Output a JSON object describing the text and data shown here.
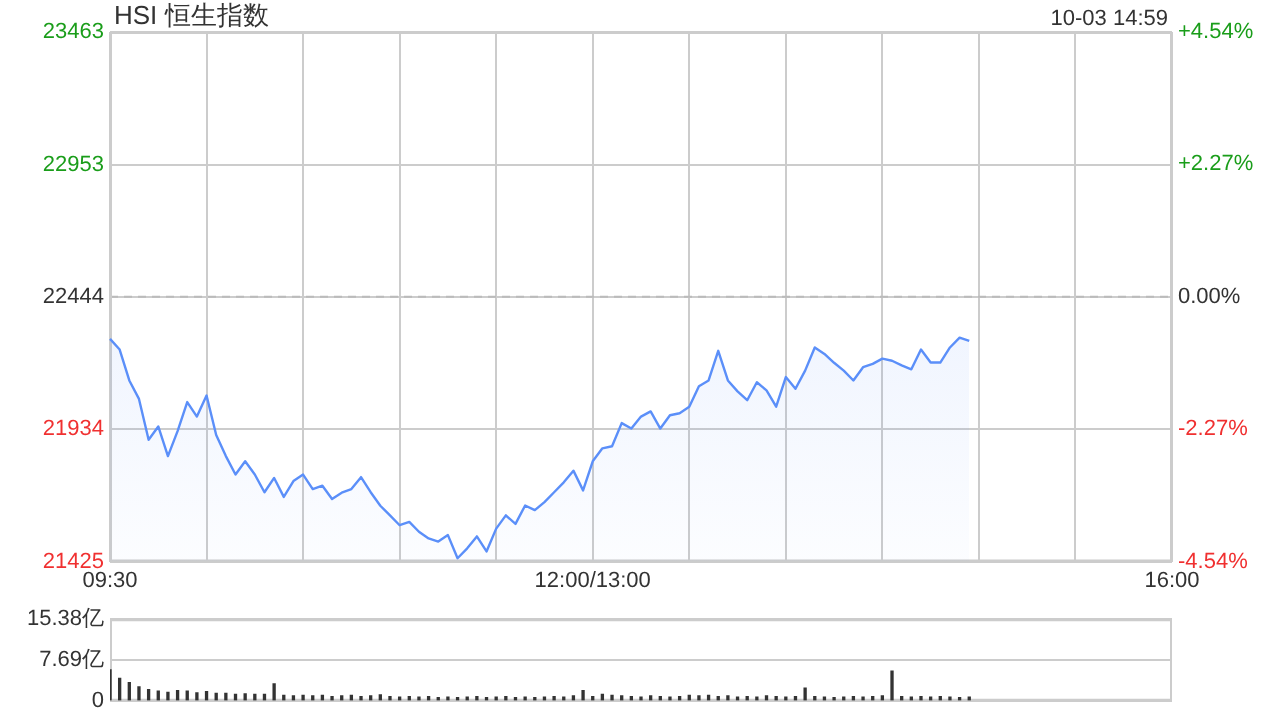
{
  "chart_data": [
    {
      "type": "area",
      "title": "HSI 恒生指数",
      "annotations": [
        "10-03 14:59"
      ],
      "categories": [
        "09:30",
        null,
        null,
        null,
        null,
        null,
        null,
        null,
        null,
        null,
        null,
        null,
        null,
        null,
        null,
        null,
        null,
        null,
        null,
        null,
        null,
        null,
        null,
        null,
        null,
        null,
        null,
        null,
        null,
        null,
        null,
        null,
        null,
        null,
        null,
        null,
        null,
        null,
        null,
        null,
        null,
        null,
        null,
        null,
        null,
        null,
        null,
        null,
        null,
        null,
        "12:00/13:00",
        null,
        null,
        null,
        null,
        null,
        null,
        null,
        null,
        null,
        null,
        null,
        null,
        null,
        null,
        null,
        null,
        null,
        null,
        null,
        null,
        null,
        null,
        null,
        null,
        null,
        null,
        null,
        null,
        null,
        null,
        null,
        null,
        null,
        null,
        null,
        null,
        null,
        null,
        null,
        null,
        null,
        null,
        null,
        null,
        null,
        null,
        null,
        null,
        null,
        null,
        null,
        null,
        null,
        null,
        null,
        null,
        null,
        null,
        null,
        "16:00"
      ],
      "series": [
        {
          "color": "#5b8ff9",
          "values": [
            22282,
            22241,
            22122,
            22051,
            21894,
            21945,
            21831,
            21927,
            22039,
            21983,
            22064,
            21912,
            21831,
            21760,
            21811,
            21760,
            21692,
            21747,
            21674,
            21735,
            21760,
            21704,
            21717,
            21666,
            21690,
            21704,
            21750,
            21692,
            21640,
            21603,
            21565,
            21578,
            21540,
            21514,
            21502,
            21527,
            21438,
            21476,
            21522,
            21464,
            21552,
            21603,
            21570,
            21641,
            21623,
            21654,
            21692,
            21730,
            21775,
            21699,
            21811,
            21861,
            21869,
            21958,
            21937,
            21983,
            22003,
            21937,
            21988,
            21996,
            22021,
            22100,
            22122,
            22236,
            22122,
            22080,
            22046,
            22115,
            22084,
            22021,
            22135,
            22090,
            22160,
            22249,
            22224,
            22190,
            22160,
            22122,
            22173,
            22186,
            22206,
            22198,
            22180,
            22165,
            22241,
            22191,
            22191,
            22249,
            22287,
            22274,
            null,
            null,
            null,
            null,
            null,
            null,
            null,
            null,
            null,
            null,
            null,
            null,
            null,
            null,
            null,
            null,
            null,
            null,
            null,
            null,
            null
          ]
        }
      ],
      "ylim": [
        21425,
        23463
      ],
      "yticks": [
        21425,
        21934,
        22444,
        22953,
        23463
      ],
      "y2lim": [
        -4.54,
        4.54
      ],
      "y2ticks": [
        {
          "value": -4.54,
          "label": "-4.54%"
        },
        {
          "value": -2.27,
          "label": "-2.27%"
        },
        {
          "value": 0,
          "label": "0.00%"
        },
        {
          "value": 2.27,
          "label": "+2.27%"
        },
        {
          "value": 4.54,
          "label": "+4.54%"
        }
      ],
      "ref_lines": [
        {
          "axis": "y",
          "value": 22444,
          "line_style": "dashed",
          "color": "#bbbbbb"
        }
      ],
      "grid": true,
      "marker": "none"
    },
    {
      "type": "bar",
      "tick_labels": "y",
      "categories": [
        null,
        null,
        null,
        null,
        null,
        null,
        null,
        null,
        null,
        null,
        null,
        null,
        null,
        null,
        null,
        null,
        null,
        null,
        null,
        null,
        null,
        null,
        null,
        null,
        null,
        null,
        null,
        null,
        null,
        null,
        null,
        null,
        null,
        null,
        null,
        null,
        null,
        null,
        null,
        null,
        null,
        null,
        null,
        null,
        null,
        null,
        null,
        null,
        null,
        null,
        null,
        null,
        null,
        null,
        null,
        null,
        null,
        null,
        null,
        null,
        null,
        null,
        null,
        null,
        null,
        null,
        null,
        null,
        null,
        null,
        null,
        null,
        null,
        null,
        null,
        null,
        null,
        null,
        null,
        null,
        null,
        null,
        null,
        null,
        null,
        null,
        null,
        null,
        null,
        null,
        null,
        null,
        null,
        null,
        null,
        null,
        null,
        null,
        null,
        null,
        null,
        null,
        null,
        null,
        null,
        null,
        null,
        null,
        null,
        null,
        null
      ],
      "values": [
        5.8,
        4.2,
        3.4,
        2.6,
        2.1,
        1.8,
        1.6,
        1.9,
        1.8,
        1.5,
        1.7,
        1.4,
        1.4,
        1.2,
        1.3,
        1.2,
        1.2,
        3.2,
        1.0,
        0.9,
        1.0,
        0.9,
        1.0,
        0.8,
        0.9,
        1.0,
        0.8,
        0.9,
        1.1,
        0.8,
        0.7,
        0.8,
        0.7,
        0.8,
        0.6,
        0.7,
        0.6,
        0.7,
        0.8,
        0.6,
        0.7,
        0.8,
        0.6,
        0.7,
        0.6,
        0.7,
        0.8,
        0.7,
        0.9,
        1.9,
        0.8,
        1.2,
        1.0,
        0.9,
        0.8,
        0.7,
        0.9,
        0.8,
        0.7,
        0.8,
        1.0,
        0.9,
        1.0,
        0.8,
        0.9,
        0.7,
        0.8,
        0.7,
        0.9,
        0.8,
        0.7,
        0.8,
        2.4,
        0.8,
        0.7,
        0.6,
        0.7,
        0.8,
        0.7,
        0.8,
        0.9,
        5.6,
        0.8,
        0.7,
        0.8,
        0.7,
        0.8,
        0.7,
        0.6,
        0.7,
        null,
        null,
        null,
        null,
        null,
        null,
        null,
        null,
        null,
        null,
        null,
        null,
        null,
        null,
        null,
        null,
        null,
        null,
        null,
        null,
        null
      ],
      "color": "#333333",
      "ylim": [
        0,
        15.38
      ],
      "yticks": [
        0,
        {
          "value": 7.69,
          "label": "7.69亿"
        },
        {
          "value": 15.38,
          "label": "15.38亿"
        }
      ],
      "grid": "y"
    }
  ]
}
